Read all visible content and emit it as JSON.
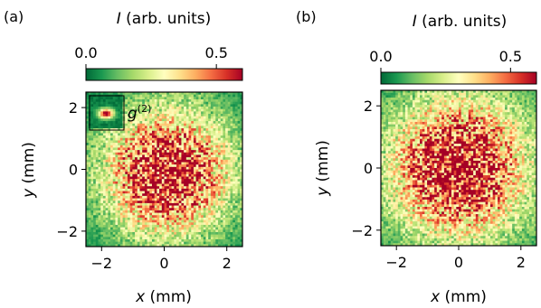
{
  "chart_data": [
    {
      "type": "heatmap",
      "panel_label": "(a)",
      "colorbar": {
        "label_var": "I",
        "label_unit": " (arb. units)",
        "ticks": [
          {
            "value": 0.0,
            "label": "0.0"
          },
          {
            "value": 0.5,
            "label": "0.5"
          }
        ],
        "range": [
          0.0,
          0.6
        ],
        "colormap": "RdYlGn_r",
        "position": "top"
      },
      "xlabel_var": "x",
      "xlabel_unit": " (mm)",
      "ylabel_var": "y",
      "ylabel_unit": " (mm)",
      "xlim": [
        -2.5,
        2.5
      ],
      "ylim": [
        -2.5,
        2.5
      ],
      "xticks": [
        {
          "value": -2,
          "label": "−2"
        },
        {
          "value": 0,
          "label": "0"
        },
        {
          "value": 2,
          "label": "2"
        }
      ],
      "yticks": [
        {
          "value": -2,
          "label": "−2"
        },
        {
          "value": 0,
          "label": "0"
        },
        {
          "value": 2,
          "label": "2"
        }
      ],
      "speckle_grid": 64,
      "intensity_center": [
        0.1,
        -0.1
      ],
      "intensity_peak": 0.6,
      "intensity_sigma_mm": 1.5,
      "inset": {
        "label_base": "g",
        "label_sup": "(2)",
        "x_range": [
          -2.4,
          -1.3
        ],
        "y_range": [
          1.3,
          2.4
        ],
        "peak_center": [
          -1.85,
          1.8
        ]
      }
    },
    {
      "type": "heatmap",
      "panel_label": "(b)",
      "colorbar": {
        "label_var": "I",
        "label_unit": " (arb. units)",
        "ticks": [
          {
            "value": 0.0,
            "label": "0.0"
          },
          {
            "value": 0.5,
            "label": "0.5"
          }
        ],
        "range": [
          0.0,
          0.6
        ],
        "colormap": "RdYlGn_r",
        "position": "top"
      },
      "xlabel_var": "x",
      "xlabel_unit": " (mm)",
      "ylabel_var": "y",
      "ylabel_unit": " (mm)",
      "xlim": [
        -2.5,
        2.5
      ],
      "ylim": [
        -2.5,
        2.5
      ],
      "xticks": [
        {
          "value": -2,
          "label": "−2"
        },
        {
          "value": 0,
          "label": "0"
        },
        {
          "value": 2,
          "label": "2"
        }
      ],
      "yticks": [
        {
          "value": -2,
          "label": "−2"
        },
        {
          "value": 0,
          "label": "0"
        },
        {
          "value": 2,
          "label": "2"
        }
      ],
      "speckle_grid": 64,
      "intensity_center": [
        0.0,
        0.0
      ],
      "intensity_peak": 0.6,
      "intensity_sigma_mm": 1.7
    }
  ],
  "colormap_stops": [
    "#006837",
    "#1a9850",
    "#66bd63",
    "#a6d96a",
    "#d9ef8b",
    "#ffffbf",
    "#fee08b",
    "#fdae61",
    "#f46d43",
    "#d73027",
    "#a50026"
  ]
}
